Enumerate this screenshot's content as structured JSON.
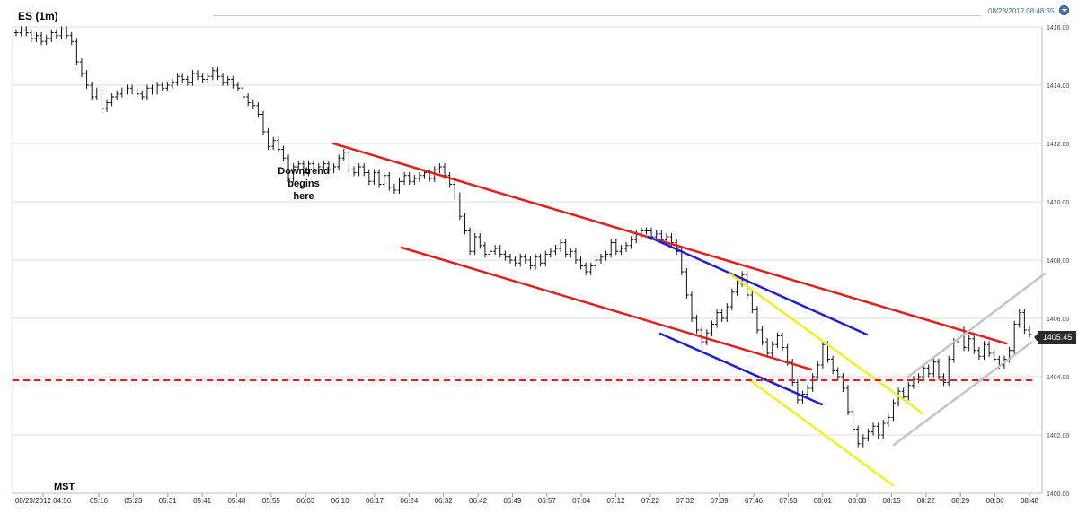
{
  "header": {
    "title": "ES (1m)",
    "datetime": "08/23/2012 08:48:35",
    "settings_icon": "chevron-down-icon"
  },
  "annotation": {
    "lines": [
      "Downtrend",
      "begins",
      "here"
    ]
  },
  "timezone_label": "MST",
  "last_price_label": "1405.45",
  "chart_data": {
    "type": "bar",
    "subtype": "ohlc-price-bars",
    "title": "ES (1m)",
    "ylim": [
      1400,
      1416
    ],
    "y_ticks": [
      "1416.00",
      "1414.00",
      "1412.00",
      "1410.00",
      "1408.00",
      "1406.00",
      "1404.00",
      "1402.00",
      "1400.00"
    ],
    "x_ticks": [
      "08/23/2012 04:56",
      "05:16",
      "05:23",
      "05:31",
      "05:41",
      "05:48",
      "05:55",
      "06:03",
      "06:10",
      "06:17",
      "06:24",
      "06:32",
      "06:42",
      "06:49",
      "06:57",
      "07:04",
      "07:12",
      "07:22",
      "07:32",
      "07:39",
      "07:46",
      "07:53",
      "08:01",
      "08:08",
      "08:15",
      "08:22",
      "08:29",
      "08:36",
      "08:48"
    ],
    "grid": true,
    "last_price": 1405.45,
    "bar_closes": [
      1415.8,
      1415.9,
      1415.8,
      1415.6,
      1415.7,
      1415.5,
      1415.6,
      1415.8,
      1415.7,
      1415.9,
      1415.7,
      1415.5,
      1414.8,
      1414.4,
      1414.0,
      1413.6,
      1413.8,
      1413.2,
      1413.4,
      1413.6,
      1413.7,
      1413.8,
      1413.9,
      1413.8,
      1413.7,
      1413.6,
      1413.9,
      1413.8,
      1414.0,
      1413.9,
      1414.0,
      1414.1,
      1414.3,
      1414.2,
      1414.1,
      1414.4,
      1414.3,
      1414.2,
      1414.3,
      1414.5,
      1414.3,
      1414.1,
      1414.2,
      1414.0,
      1413.9,
      1413.6,
      1413.4,
      1413.3,
      1413.0,
      1412.4,
      1411.9,
      1412.1,
      1411.8,
      1411.5,
      1410.8,
      1411.2,
      1411.3,
      1411.0,
      1411.3,
      1411.1,
      1411.2,
      1411.3,
      1411.1,
      1411.2,
      1411.5,
      1411.7,
      1411.1,
      1411.0,
      1411.2,
      1411.0,
      1410.7,
      1411.0,
      1410.6,
      1410.9,
      1410.5,
      1410.4,
      1410.7,
      1410.9,
      1410.7,
      1410.8,
      1410.9,
      1411.0,
      1410.8,
      1411.1,
      1411.2,
      1410.9,
      1410.6,
      1410.2,
      1409.5,
      1409.0,
      1408.3,
      1408.8,
      1408.5,
      1408.2,
      1408.3,
      1408.4,
      1408.2,
      1408.1,
      1408.0,
      1407.9,
      1408.1,
      1408.0,
      1407.8,
      1408.1,
      1407.9,
      1408.2,
      1408.3,
      1408.4,
      1408.6,
      1408.2,
      1408.3,
      1408.0,
      1407.8,
      1407.6,
      1407.8,
      1408.0,
      1408.1,
      1408.2,
      1408.6,
      1408.3,
      1408.4,
      1408.5,
      1408.7,
      1408.9,
      1409.0,
      1409.0,
      1408.8,
      1408.9,
      1408.7,
      1408.8,
      1408.6,
      1408.3,
      1407.6,
      1406.8,
      1406.0,
      1405.6,
      1405.2,
      1405.5,
      1405.8,
      1406.2,
      1406.0,
      1406.4,
      1406.9,
      1407.2,
      1407.5,
      1406.8,
      1406.3,
      1405.6,
      1405.2,
      1404.8,
      1405.1,
      1405.4,
      1405.0,
      1404.5,
      1403.8,
      1403.2,
      1403.4,
      1403.6,
      1404.0,
      1404.4,
      1405.1,
      1404.6,
      1404.2,
      1404.0,
      1403.6,
      1402.8,
      1402.2,
      1401.7,
      1401.9,
      1402.1,
      1402.3,
      1402.0,
      1402.4,
      1402.6,
      1403.1,
      1403.5,
      1403.3,
      1403.7,
      1403.9,
      1404.0,
      1404.3,
      1404.1,
      1404.5,
      1404.0,
      1403.8,
      1404.6,
      1405.2,
      1405.6,
      1405.0,
      1405.3,
      1404.9,
      1404.7,
      1405.1,
      1404.8,
      1404.6,
      1404.4,
      1404.6,
      1404.9,
      1405.8,
      1406.2,
      1405.6,
      1405.45
    ]
  }
}
